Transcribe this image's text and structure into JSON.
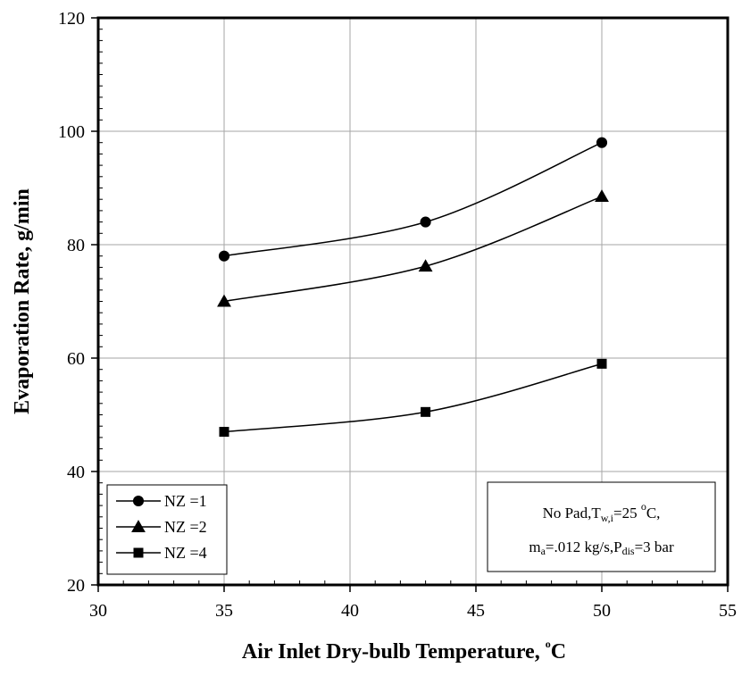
{
  "chart_data": {
    "type": "line",
    "xlabel": "Air Inlet Dry-bulb Temperature, ",
    "xlabel_unit_sup": "o",
    "xlabel_unit": "C",
    "ylabel": "Evaporation Rate, g/min",
    "xlim": [
      30,
      55
    ],
    "ylim": [
      20,
      120
    ],
    "xticks": [
      30,
      35,
      40,
      45,
      50,
      55
    ],
    "yticks": [
      20,
      40,
      60,
      80,
      100,
      120
    ],
    "grid": true,
    "legend_position": "bottom-left",
    "series": [
      {
        "name": "NZ =1",
        "marker": "circle",
        "x": [
          35,
          43,
          50
        ],
        "y": [
          78,
          84,
          98
        ]
      },
      {
        "name": "NZ =2",
        "marker": "triangle",
        "x": [
          35,
          43,
          50
        ],
        "y": [
          70,
          76.2,
          88.5
        ]
      },
      {
        "name": "NZ =4",
        "marker": "square",
        "x": [
          35,
          43,
          50
        ],
        "y": [
          47,
          50.5,
          59
        ]
      }
    ],
    "annotation": {
      "line1_a": "No Pad,T",
      "line1_sub": "w,i",
      "line1_b": "=25 ",
      "line1_sup": "o",
      "line1_c": "C,",
      "line2_a": "m",
      "line2_sub1": "a",
      "line2_b": "=.012 kg/s,P",
      "line2_sub2": "dis",
      "line2_c": "=3 bar"
    }
  }
}
